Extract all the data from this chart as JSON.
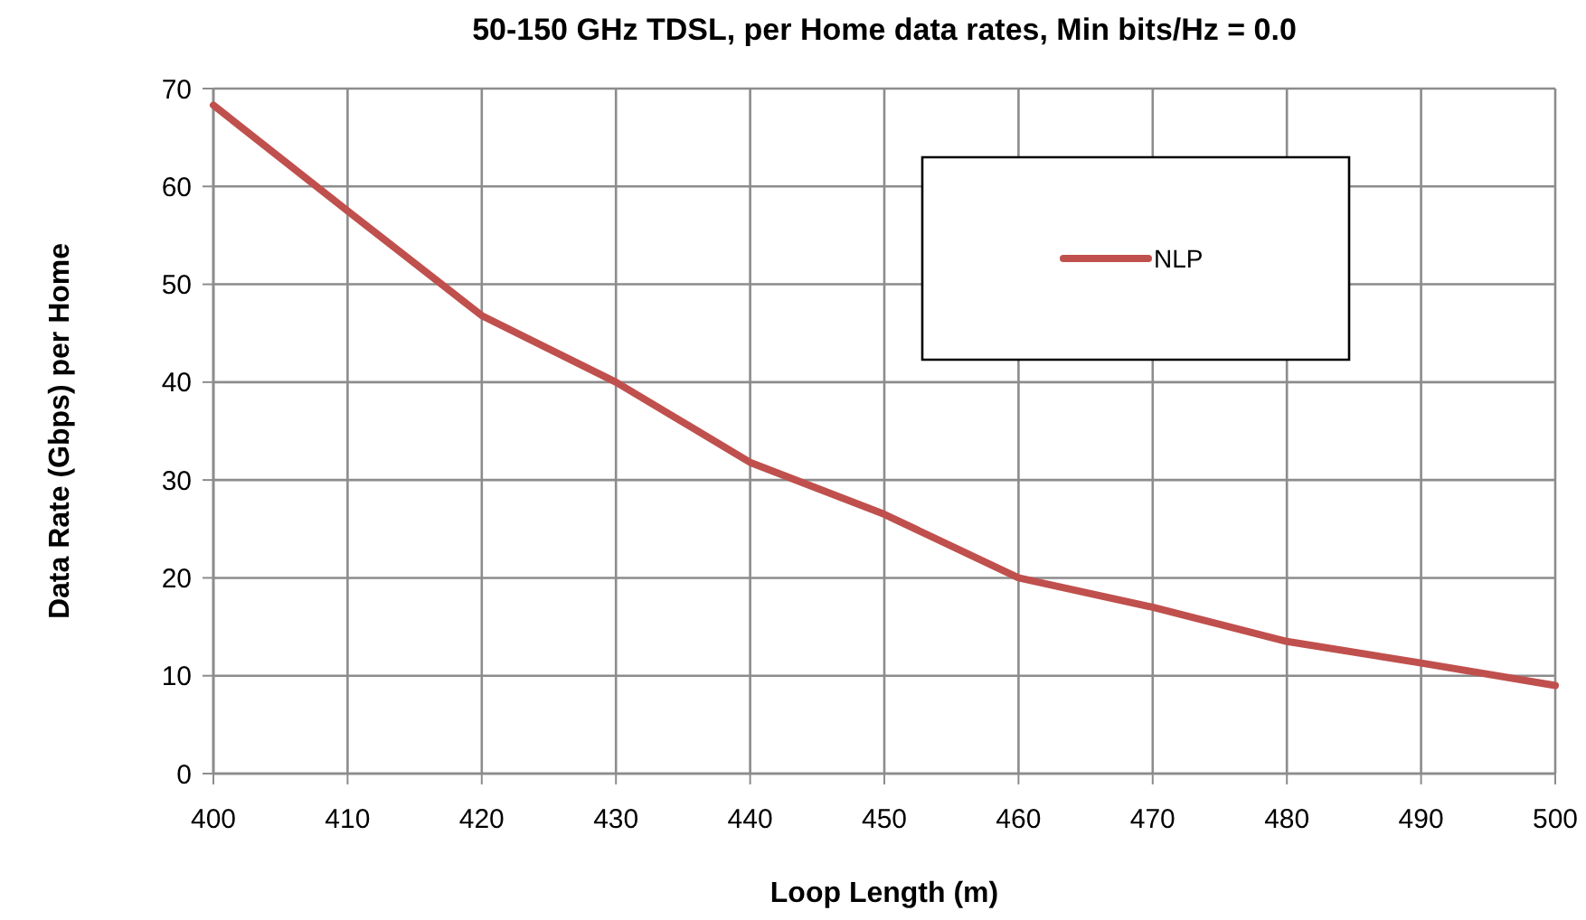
{
  "chart_data": {
    "type": "line",
    "title": "50-150 GHz TDSL, per Home data rates, Min bits/Hz = 0.0",
    "xlabel": "Loop Length (m)",
    "ylabel": "Data Rate (Gbps) per Home",
    "x": [
      400,
      410,
      420,
      430,
      440,
      450,
      460,
      470,
      480,
      490,
      500
    ],
    "series": [
      {
        "name": "NLP",
        "color": "#c0504d",
        "values": [
          68.3,
          57.5,
          46.8,
          40,
          31.8,
          26.5,
          20,
          17,
          13.5,
          11.3,
          9
        ]
      }
    ],
    "xlim": [
      400,
      500
    ],
    "xticks": [
      400,
      410,
      420,
      430,
      440,
      450,
      460,
      470,
      480,
      490,
      500
    ],
    "ylim": [
      0,
      70
    ],
    "yticks": [
      0,
      10,
      20,
      30,
      40,
      50,
      60,
      70
    ],
    "grid": true,
    "legend": "top right",
    "marker": "none",
    "line_style": "solid"
  }
}
